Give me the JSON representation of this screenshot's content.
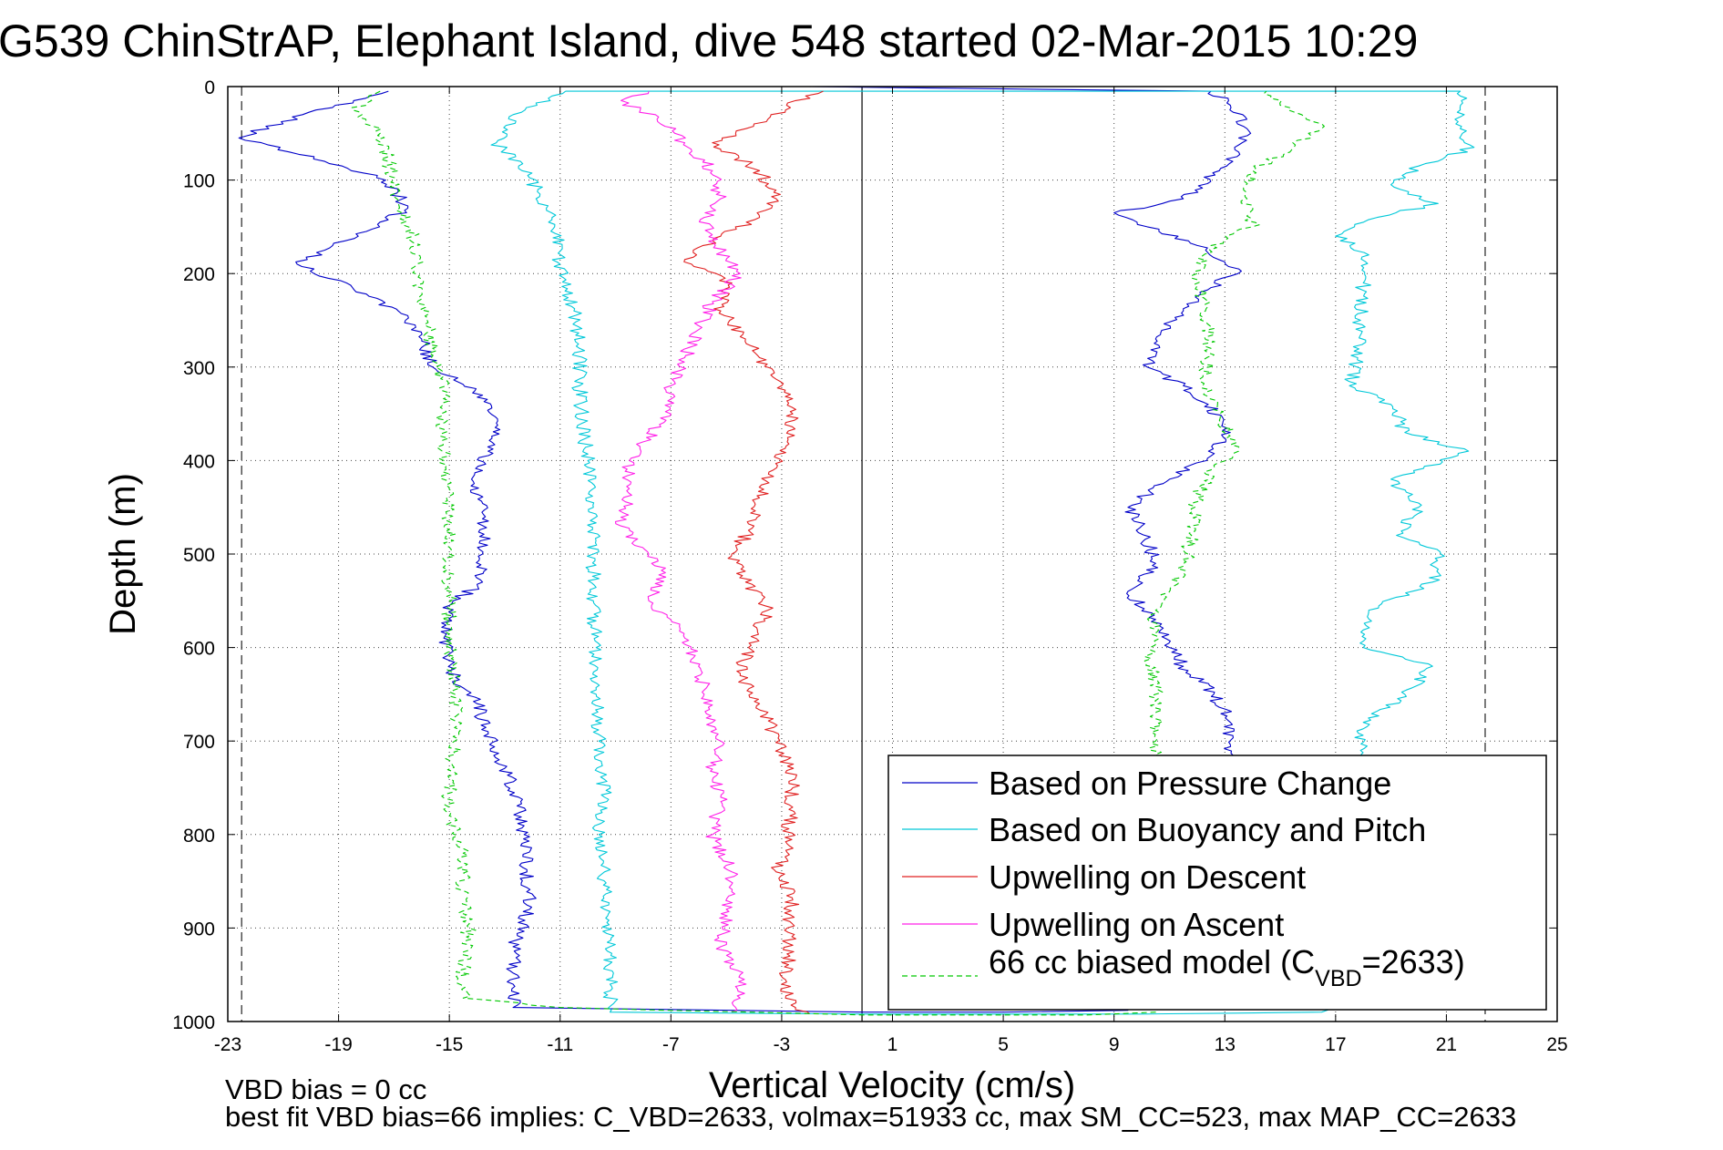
{
  "chart_data": {
    "type": "line",
    "title": "G539 ChinStrAP, Elephant Island, dive 548 started 02-Mar-2015 10:29",
    "xlabel": "Vertical Velocity (cm/s)",
    "ylabel": "Depth (m)",
    "xlim": [
      -23,
      25
    ],
    "ylim": [
      0,
      1000
    ],
    "y_reversed": true,
    "grid": true,
    "x_ticks": [
      -23,
      -19,
      -15,
      -11,
      -7,
      -3,
      1,
      5,
      9,
      13,
      17,
      21,
      25
    ],
    "y_ticks": [
      0,
      100,
      200,
      300,
      400,
      500,
      600,
      700,
      800,
      900,
      1000
    ],
    "x_tick_labels": [
      "-23",
      "-19",
      "-15",
      "-11",
      "-7",
      "-3",
      "1",
      "5",
      "9",
      "13",
      "17",
      "21",
      "25"
    ],
    "y_tick_labels": [
      "0",
      "100",
      "200",
      "300",
      "400",
      "500",
      "600",
      "700",
      "800",
      "900",
      "1000"
    ],
    "reference_lines": {
      "vertical_solid_x": -0.1,
      "vertical_dashed_x": [
        -22.5,
        22.4
      ]
    },
    "legend_position": "bottom-right",
    "legend": {
      "pressure": "Based on Pressure Change",
      "buoyancy": "Based on Buoyancy and Pitch",
      "descent": "Upwelling on Descent",
      "ascent": "Upwelling on Ascent",
      "model_prefix": "66 cc biased model (C",
      "model_sub": "VBD",
      "model_suffix": "=2633)"
    },
    "footer": {
      "bias_line": "VBD bias = 0 cc",
      "fit_line": "best fit VBD bias=66 implies: C_VBD=2633, volmax=51933 cc, max SM_CC=523, max MAP_CC=2633"
    },
    "series": [
      {
        "key": "pressure",
        "name": "Based on Pressure Change",
        "color": "#0000c8",
        "dash": "",
        "points": [
          [
            -17.2,
            5
          ],
          [
            -20.3,
            30
          ],
          [
            -22.6,
            55
          ],
          [
            -19.5,
            80
          ],
          [
            -17.3,
            100
          ],
          [
            -16.5,
            130
          ],
          [
            -18,
            155
          ],
          [
            -19.5,
            175
          ],
          [
            -20.5,
            190
          ],
          [
            -18.5,
            215
          ],
          [
            -16.5,
            245
          ],
          [
            -16,
            270
          ],
          [
            -15.6,
            300
          ],
          [
            -13.8,
            330
          ],
          [
            -13.3,
            360
          ],
          [
            -13.6,
            390
          ],
          [
            -14.2,
            420
          ],
          [
            -13.7,
            460
          ],
          [
            -13.8,
            500
          ],
          [
            -13.8,
            530
          ],
          [
            -15,
            555
          ],
          [
            -15.2,
            590
          ],
          [
            -15,
            625
          ],
          [
            -14,
            660
          ],
          [
            -13.6,
            690
          ],
          [
            -13.2,
            720
          ],
          [
            -12.5,
            760
          ],
          [
            -12.3,
            800
          ],
          [
            -12.2,
            840
          ],
          [
            -12.1,
            880
          ],
          [
            -12.7,
            920
          ],
          [
            -12.7,
            960
          ],
          [
            -12.7,
            985
          ],
          [
            0,
            990
          ],
          [
            5,
            990
          ],
          [
            9.5,
            988
          ],
          [
            9.5,
            920
          ],
          [
            10,
            880
          ],
          [
            11,
            840
          ],
          [
            11.8,
            800
          ],
          [
            12.6,
            760
          ],
          [
            13.2,
            720
          ],
          [
            13.2,
            680
          ],
          [
            12.6,
            650
          ],
          [
            11.5,
            620
          ],
          [
            11,
            600
          ],
          [
            10.5,
            570
          ],
          [
            9.5,
            540
          ],
          [
            10.5,
            510
          ],
          [
            10,
            470
          ],
          [
            9.5,
            450
          ],
          [
            11,
            420
          ],
          [
            12.5,
            395
          ],
          [
            13.2,
            370
          ],
          [
            12.4,
            340
          ],
          [
            11.5,
            320
          ],
          [
            10.2,
            300
          ],
          [
            10.5,
            270
          ],
          [
            11.5,
            240
          ],
          [
            12.5,
            215
          ],
          [
            13.5,
            195
          ],
          [
            12,
            170
          ],
          [
            10.2,
            150
          ],
          [
            9,
            135
          ],
          [
            11.5,
            120
          ],
          [
            12.8,
            90
          ],
          [
            13.5,
            70
          ],
          [
            13.8,
            45
          ],
          [
            13.2,
            20
          ],
          [
            12.5,
            5
          ],
          [
            -2,
            0
          ],
          [
            2,
            0
          ]
        ]
      },
      {
        "key": "buoyancy",
        "name": "Based on Buoyancy and Pitch",
        "color": "#00c8d8",
        "dash": "",
        "points": [
          [
            -10.8,
            5
          ],
          [
            -12.7,
            30
          ],
          [
            -13.3,
            60
          ],
          [
            -12.5,
            85
          ],
          [
            -11.8,
            110
          ],
          [
            -11.5,
            130
          ],
          [
            -11.2,
            150
          ],
          [
            -11,
            190
          ],
          [
            -10.5,
            240
          ],
          [
            -10.3,
            280
          ],
          [
            -10.3,
            320
          ],
          [
            -10.2,
            360
          ],
          [
            -10,
            400
          ],
          [
            -9.8,
            450
          ],
          [
            -9.8,
            500
          ],
          [
            -9.8,
            550
          ],
          [
            -9.7,
            600
          ],
          [
            -9.7,
            650
          ],
          [
            -9.6,
            700
          ],
          [
            -9.4,
            760
          ],
          [
            -9.6,
            800
          ],
          [
            -9.4,
            840
          ],
          [
            -9.4,
            880
          ],
          [
            -9.2,
            920
          ],
          [
            -9.2,
            960
          ],
          [
            -9.2,
            990
          ],
          [
            0,
            992
          ],
          [
            10,
            992
          ],
          [
            16.5,
            990
          ],
          [
            17.8,
            940
          ],
          [
            17.8,
            880
          ],
          [
            17.8,
            820
          ],
          [
            17.8,
            760
          ],
          [
            17.9,
            710
          ],
          [
            18,
            680
          ],
          [
            19.5,
            650
          ],
          [
            20.5,
            620
          ],
          [
            18,
            600
          ],
          [
            18.2,
            560
          ],
          [
            20.5,
            530
          ],
          [
            20.8,
            500
          ],
          [
            19.2,
            480
          ],
          [
            20,
            450
          ],
          [
            19,
            420
          ],
          [
            21.8,
            390
          ],
          [
            19.5,
            370
          ],
          [
            19,
            340
          ],
          [
            17.5,
            320
          ],
          [
            17.8,
            290
          ],
          [
            17.9,
            250
          ],
          [
            18,
            210
          ],
          [
            18.2,
            180
          ],
          [
            17,
            160
          ],
          [
            18.5,
            140
          ],
          [
            20.7,
            125
          ],
          [
            19,
            105
          ],
          [
            20,
            85
          ],
          [
            22,
            65
          ],
          [
            21.5,
            45
          ],
          [
            21.5,
            25
          ],
          [
            21.5,
            5
          ],
          [
            -10.8,
            5
          ]
        ]
      },
      {
        "key": "descent",
        "name": "Upwelling on Descent",
        "color": "#e02020",
        "dash": "",
        "points": [
          [
            -1.5,
            5
          ],
          [
            -2.5,
            15
          ],
          [
            -3.5,
            35
          ],
          [
            -5.5,
            60
          ],
          [
            -3.8,
            90
          ],
          [
            -3.2,
            120
          ],
          [
            -3.8,
            140
          ],
          [
            -5.2,
            160
          ],
          [
            -6.5,
            185
          ],
          [
            -4.8,
            210
          ],
          [
            -5.2,
            240
          ],
          [
            -4.4,
            265
          ],
          [
            -3.8,
            290
          ],
          [
            -3,
            320
          ],
          [
            -2.6,
            350
          ],
          [
            -2.8,
            380
          ],
          [
            -3.3,
            410
          ],
          [
            -3.8,
            440
          ],
          [
            -4,
            470
          ],
          [
            -4.8,
            500
          ],
          [
            -4.3,
            530
          ],
          [
            -3.5,
            560
          ],
          [
            -4.2,
            600
          ],
          [
            -4.5,
            630
          ],
          [
            -3.8,
            660
          ],
          [
            -3.3,
            690
          ],
          [
            -2.8,
            720
          ],
          [
            -2.6,
            750
          ],
          [
            -2.7,
            780
          ],
          [
            -2.8,
            810
          ],
          [
            -3.2,
            840
          ],
          [
            -2.6,
            870
          ],
          [
            -2.8,
            900
          ],
          [
            -2.7,
            930
          ],
          [
            -3,
            960
          ],
          [
            -2.5,
            985
          ],
          [
            -2,
            992
          ]
        ]
      },
      {
        "key": "ascent",
        "name": "Upwelling on Ascent",
        "color": "#ff20e8",
        "dash": "",
        "points": [
          [
            -7.8,
            5
          ],
          [
            -8.8,
            15
          ],
          [
            -7.5,
            35
          ],
          [
            -6.5,
            60
          ],
          [
            -5.5,
            90
          ],
          [
            -5.2,
            120
          ],
          [
            -5.8,
            140
          ],
          [
            -5.4,
            170
          ],
          [
            -4.5,
            200
          ],
          [
            -5.5,
            230
          ],
          [
            -6,
            260
          ],
          [
            -6.5,
            290
          ],
          [
            -7,
            320
          ],
          [
            -7,
            350
          ],
          [
            -8,
            380
          ],
          [
            -8.5,
            400
          ],
          [
            -8.5,
            430
          ],
          [
            -8.8,
            470
          ],
          [
            -7.8,
            500
          ],
          [
            -7.2,
            520
          ],
          [
            -7.8,
            550
          ],
          [
            -7,
            570
          ],
          [
            -6.5,
            590
          ],
          [
            -6,
            620
          ],
          [
            -5.8,
            650
          ],
          [
            -5.5,
            680
          ],
          [
            -5.2,
            700
          ],
          [
            -5.5,
            730
          ],
          [
            -5.2,
            760
          ],
          [
            -5.5,
            800
          ],
          [
            -4.8,
            840
          ],
          [
            -5,
            880
          ],
          [
            -5.2,
            920
          ],
          [
            -4.5,
            950
          ],
          [
            -4.5,
            975
          ],
          [
            -4.8,
            990
          ]
        ]
      },
      {
        "key": "model",
        "name": "66 cc biased model (CVBD=2633)",
        "color": "#00c800",
        "dash": "6,4",
        "points": [
          [
            -17.5,
            5
          ],
          [
            -18.5,
            25
          ],
          [
            -17.5,
            50
          ],
          [
            -17.2,
            80
          ],
          [
            -17,
            100
          ],
          [
            -16.8,
            130
          ],
          [
            -16.3,
            160
          ],
          [
            -16.2,
            190
          ],
          [
            -16,
            220
          ],
          [
            -15.8,
            250
          ],
          [
            -15.6,
            280
          ],
          [
            -15.5,
            300
          ],
          [
            -15.1,
            320
          ],
          [
            -15.3,
            350
          ],
          [
            -15.2,
            400
          ],
          [
            -15,
            450
          ],
          [
            -15,
            500
          ],
          [
            -15,
            550
          ],
          [
            -15,
            600
          ],
          [
            -14.8,
            650
          ],
          [
            -14.8,
            700
          ],
          [
            -15,
            740
          ],
          [
            -15,
            780
          ],
          [
            -14.5,
            820
          ],
          [
            -14.5,
            860
          ],
          [
            -14.3,
            900
          ],
          [
            -14.5,
            940
          ],
          [
            -14.5,
            975
          ],
          [
            -11,
            985
          ],
          [
            0,
            993
          ],
          [
            8,
            993
          ],
          [
            10.5,
            990
          ],
          [
            10.5,
            940
          ],
          [
            10.5,
            880
          ],
          [
            10.6,
            820
          ],
          [
            10.5,
            760
          ],
          [
            10.5,
            700
          ],
          [
            10.5,
            650
          ],
          [
            10.3,
            600
          ],
          [
            10.5,
            560
          ],
          [
            11.5,
            520
          ],
          [
            11.8,
            480
          ],
          [
            12,
            440
          ],
          [
            12.5,
            410
          ],
          [
            13.5,
            390
          ],
          [
            12.8,
            350
          ],
          [
            12.2,
            320
          ],
          [
            12.5,
            280
          ],
          [
            12.3,
            240
          ],
          [
            12,
            200
          ],
          [
            12.5,
            170
          ],
          [
            14,
            150
          ],
          [
            13.8,
            120
          ],
          [
            14,
            90
          ],
          [
            15.5,
            65
          ],
          [
            16.5,
            40
          ],
          [
            15,
            20
          ],
          [
            14.5,
            5
          ]
        ]
      }
    ]
  }
}
